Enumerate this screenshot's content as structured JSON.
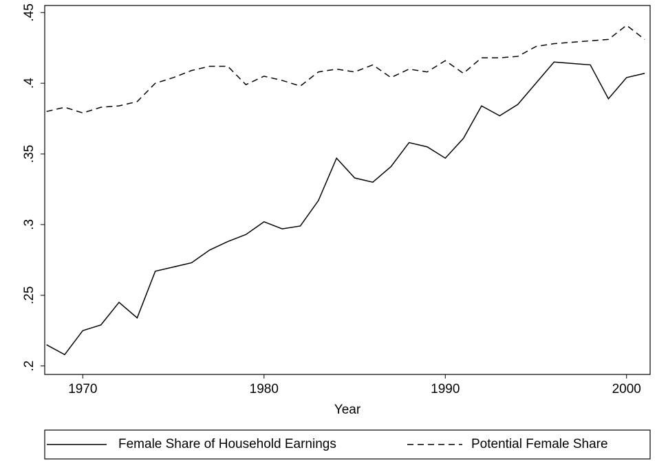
{
  "chart_data": {
    "type": "line",
    "x_label": "Year",
    "x": [
      1968,
      1969,
      1970,
      1971,
      1972,
      1973,
      1974,
      1975,
      1976,
      1977,
      1978,
      1979,
      1980,
      1981,
      1982,
      1983,
      1984,
      1985,
      1986,
      1987,
      1988,
      1989,
      1990,
      1991,
      1992,
      1993,
      1994,
      1995,
      1996,
      1997,
      1998,
      1999,
      2000,
      2001
    ],
    "series": [
      {
        "name": "Female Share of Household Earnings",
        "color": "#000000",
        "dash": false,
        "values": [
          0.215,
          0.208,
          0.225,
          0.229,
          0.245,
          0.234,
          0.267,
          0.27,
          0.273,
          0.282,
          0.288,
          0.293,
          0.302,
          0.297,
          0.299,
          0.317,
          0.347,
          0.333,
          0.33,
          0.341,
          0.358,
          0.355,
          0.347,
          0.361,
          0.384,
          0.377,
          0.385,
          0.4,
          0.415,
          0.414,
          0.413,
          0.389,
          0.404,
          0.407
        ]
      },
      {
        "name": "Potential Female Share",
        "color": "#000000",
        "dash": true,
        "values": [
          0.38,
          0.383,
          0.379,
          0.383,
          0.384,
          0.387,
          0.4,
          0.404,
          0.409,
          0.412,
          0.412,
          0.399,
          0.405,
          0.402,
          0.398,
          0.408,
          0.41,
          0.408,
          0.413,
          0.404,
          0.41,
          0.408,
          0.416,
          0.407,
          0.418,
          0.418,
          0.419,
          0.426,
          0.428,
          0.429,
          0.43,
          0.431,
          0.441,
          0.431
        ]
      }
    ],
    "xlim": [
      1967.9,
      2001.3
    ],
    "xticks": [
      1970,
      1980,
      1990,
      2000
    ],
    "ylim": [
      0.194,
      0.455
    ],
    "yticks": [
      {
        "value": 0.2,
        "label": ".2"
      },
      {
        "value": 0.25,
        "label": ".25"
      },
      {
        "value": 0.3,
        "label": ".3"
      },
      {
        "value": 0.35,
        "label": ".35"
      },
      {
        "value": 0.4,
        "label": ".4"
      },
      {
        "value": 0.45,
        "label": ".45"
      }
    ],
    "grid": false,
    "legend": "bottom"
  }
}
